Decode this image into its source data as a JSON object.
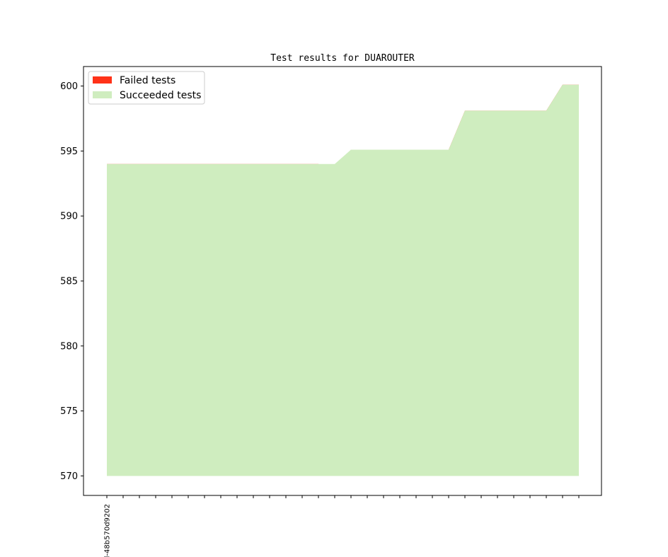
{
  "chart_data": {
    "type": "area",
    "title": "Test results for DUAROUTER",
    "xlabel": "",
    "ylabel": "",
    "ylim": [
      568.5,
      601.5
    ],
    "yticks": [
      570,
      575,
      580,
      585,
      590,
      595,
      600
    ],
    "x_count": 30,
    "x_tick_labels": [
      "l-48b570d9202"
    ],
    "baseline": 570,
    "series": [
      {
        "name": "Failed tests",
        "color": "#ff3218",
        "values": [
          594,
          594,
          594,
          594,
          594,
          594,
          594,
          594,
          594,
          594,
          594,
          594,
          594,
          594,
          593.1,
          595.1,
          595.1,
          595.1,
          595.1,
          595.1,
          595.1,
          595.1,
          598.1,
          598.1,
          598.1,
          598.1,
          598.1,
          598.1,
          600.1,
          600.1
        ]
      },
      {
        "name": "Succeeded tests",
        "color": "#cfedbf",
        "values": [
          594,
          594,
          594,
          594,
          594,
          594,
          594,
          594,
          594,
          594,
          594,
          594,
          594,
          594,
          594,
          595.1,
          595.1,
          595.1,
          595.1,
          595.1,
          595.1,
          595.1,
          598.1,
          598.1,
          598.1,
          598.1,
          598.1,
          598.1,
          600.1,
          600.1
        ]
      }
    ],
    "legend": {
      "position": "top-left"
    },
    "grid": false
  }
}
